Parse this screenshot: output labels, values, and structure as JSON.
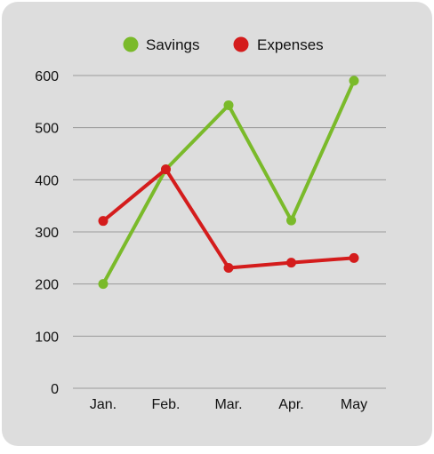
{
  "chart_data": {
    "type": "line",
    "categories": [
      "Jan.",
      "Feb.",
      "Mar.",
      "Apr.",
      "May"
    ],
    "series": [
      {
        "name": "Savings",
        "color": "#7aba2a",
        "values": [
          200,
          420,
          543,
          322,
          590
        ]
      },
      {
        "name": "Expenses",
        "color": "#d41c1c",
        "values": [
          321,
          420,
          231,
          241,
          250
        ]
      }
    ],
    "ylim": [
      0,
      600
    ],
    "yticks": [
      0,
      100,
      200,
      300,
      400,
      500,
      600
    ],
    "ytick_labels": [
      "0",
      "100",
      "200",
      "300",
      "400",
      "500",
      "600"
    ],
    "grid": true,
    "legend_position": "top-center",
    "background": "#dddddd",
    "gridline_color": "#9a9a9a"
  }
}
